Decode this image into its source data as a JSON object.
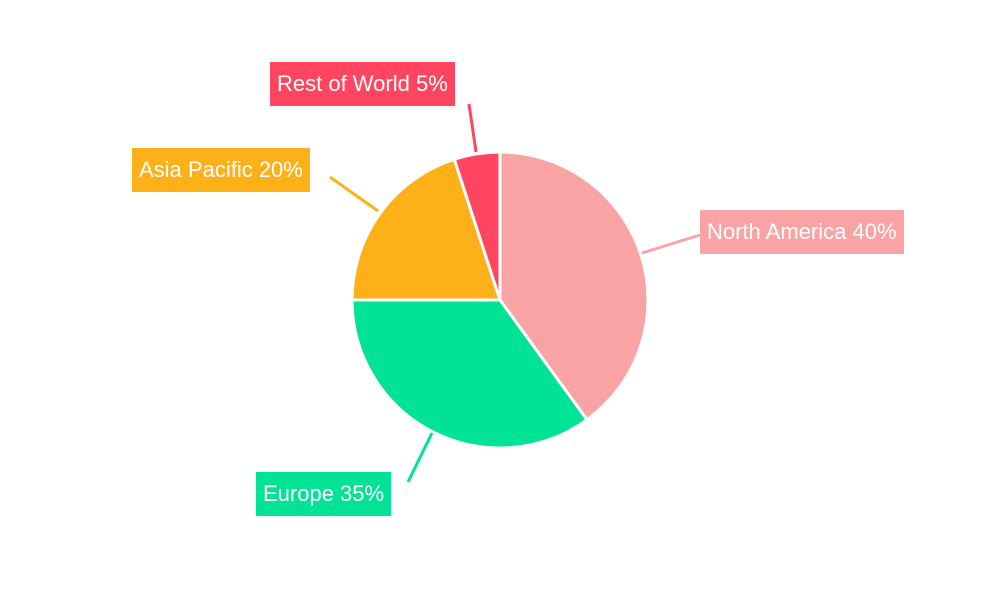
{
  "chart_data": {
    "type": "pie",
    "title": "",
    "categories": [
      "North America",
      "Europe",
      "Asia Pacific",
      "Rest of World"
    ],
    "values": [
      40,
      35,
      20,
      5
    ],
    "labels": [
      "North America 40%",
      "Europe 35%",
      "Asia Pacific 20%",
      "Rest of World 5%"
    ],
    "colors": [
      "#f9a3a4",
      "#00e396",
      "#feb019",
      "#ff4560"
    ],
    "start_angle": "12 o'clock, clockwise",
    "legend": "none"
  }
}
